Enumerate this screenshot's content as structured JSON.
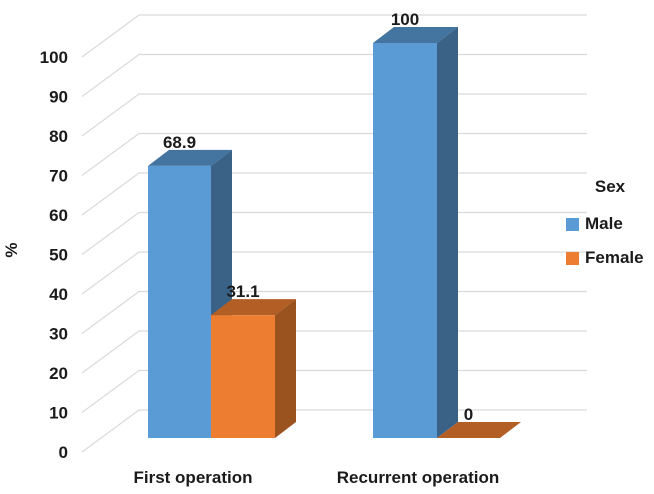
{
  "chart_data": {
    "type": "bar",
    "variant": "3d-clustered-column",
    "title": "",
    "xlabel": "",
    "ylabel": "%",
    "categories": [
      "First operation",
      "Recurrent operation"
    ],
    "series": [
      {
        "name": "Male",
        "color": "#5B9BD5",
        "values": [
          68.9,
          100
        ],
        "labels": [
          "68.9",
          "100"
        ]
      },
      {
        "name": "Female",
        "color": "#ED7D31",
        "values": [
          31.1,
          0
        ],
        "labels": [
          "31.1",
          "0"
        ]
      }
    ],
    "y_ticks": [
      "0",
      "10",
      "20",
      "30",
      "40",
      "50",
      "60",
      "70",
      "80",
      "90",
      "100"
    ],
    "ylim": [
      0,
      100
    ],
    "grid": true,
    "legend": {
      "title": "Sex",
      "position": "right"
    },
    "colors": {
      "male_front": "#5B9BD5",
      "male_top": "#4474A0",
      "male_side": "#3A6186",
      "female_front": "#ED7D31",
      "female_top": "#B25E25",
      "female_side": "#9A521E",
      "gridline": "#DADADA",
      "text": "#1B1B1B",
      "background": "#FFFFFF"
    }
  }
}
